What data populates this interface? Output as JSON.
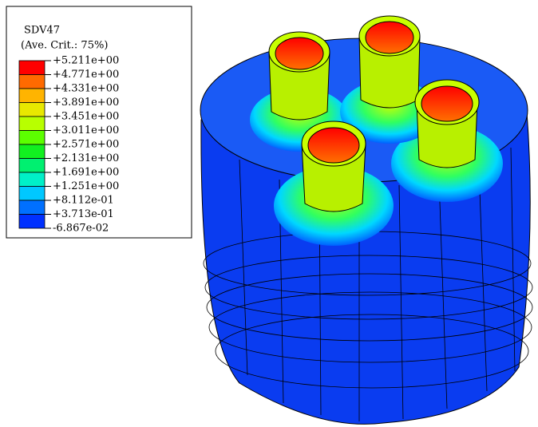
{
  "legend": {
    "title": "SDV47",
    "subtitle": "(Ave. Crit.: 75%)",
    "levels": [
      "+5.211e+00",
      "+4.771e+00",
      "+4.331e+00",
      "+3.891e+00",
      "+3.451e+00",
      "+3.011e+00",
      "+2.571e+00",
      "+2.131e+00",
      "+1.691e+00",
      "+1.251e+00",
      "+8.112e-01",
      "+3.713e-01",
      "-6.867e-02"
    ],
    "band_colors": [
      "#ff0000",
      "#ff6a00",
      "#ffb400",
      "#e8e800",
      "#b8ff00",
      "#5cff00",
      "#12f020",
      "#00f070",
      "#00f0c8",
      "#00c8ff",
      "#0070ff",
      "#0030ff"
    ]
  }
}
